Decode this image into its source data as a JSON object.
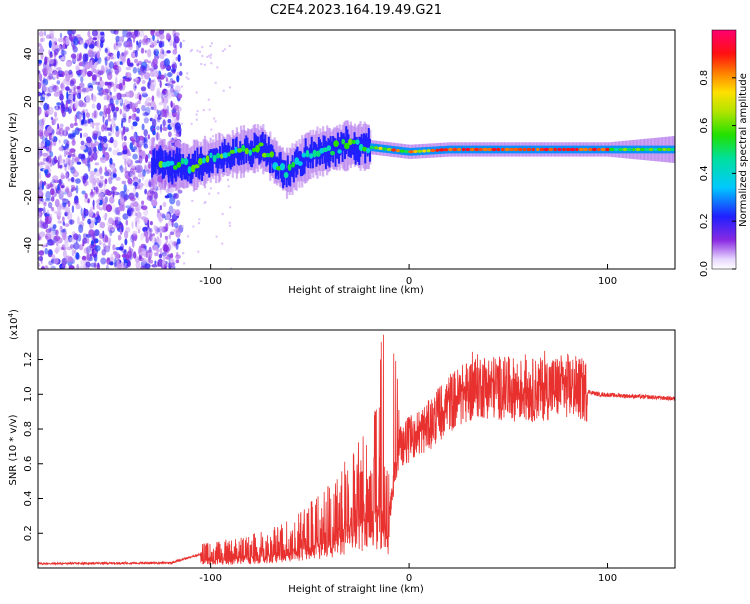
{
  "title": "C2E4.2023.164.19.49.G21",
  "chart_data": [
    {
      "type": "heatmap",
      "xlabel": "Height of straight line (km)",
      "ylabel": "Frequency (Hz)",
      "xlim": [
        -187,
        134
      ],
      "ylim": [
        -50,
        50
      ],
      "xticks": [
        -100,
        0,
        100
      ],
      "yticks": [
        -40,
        -20,
        0,
        20,
        40
      ],
      "colorbar": {
        "label": "Normalized spectral amplitude",
        "range": [
          0.0,
          1.0
        ],
        "ticks": [
          0.0,
          0.2,
          0.4,
          0.6,
          0.8
        ]
      },
      "grid": false,
      "noise_region_x": [
        -187,
        -115
      ],
      "signal_band": [
        {
          "x": -130,
          "f": -6
        },
        {
          "x": -110,
          "f": -7
        },
        {
          "x": -95,
          "f": -3
        },
        {
          "x": -75,
          "f": 1
        },
        {
          "x": -62,
          "f": -10
        },
        {
          "x": -50,
          "f": -2
        },
        {
          "x": -30,
          "f": 2
        },
        {
          "x": -20,
          "f": 1
        },
        {
          "x": 0,
          "f": -1
        },
        {
          "x": 20,
          "f": 0
        },
        {
          "x": 60,
          "f": 0
        },
        {
          "x": 100,
          "f": 0
        },
        {
          "x": 134,
          "f": 0
        }
      ]
    },
    {
      "type": "line",
      "xlabel": "Height of straight line (km)",
      "ylabel": "SNR (10 * v/v)",
      "yscale_label": "(x10",
      "yscale_exp": "4",
      "xlim": [
        -187,
        134
      ],
      "ylim": [
        0,
        13700
      ],
      "xticks": [
        -100,
        0,
        100
      ],
      "yticks": [
        0.2,
        0.4,
        0.6,
        0.8,
        1.0,
        1.2
      ],
      "color": "#e8302e",
      "grid": false,
      "envelope": [
        {
          "x": -187,
          "y": 250
        },
        {
          "x": -120,
          "y": 300
        },
        {
          "x": -105,
          "y": 800
        },
        {
          "x": -80,
          "y": 1100
        },
        {
          "x": -60,
          "y": 1600
        },
        {
          "x": -40,
          "y": 2800
        },
        {
          "x": -25,
          "y": 4200
        },
        {
          "x": -15,
          "y": 5500
        },
        {
          "x": -10,
          "y": 3000
        },
        {
          "x": -5,
          "y": 7000
        },
        {
          "x": 10,
          "y": 8200
        },
        {
          "x": 20,
          "y": 9500
        },
        {
          "x": 35,
          "y": 10500
        },
        {
          "x": 60,
          "y": 10200
        },
        {
          "x": 80,
          "y": 10500
        },
        {
          "x": 95,
          "y": 10000
        },
        {
          "x": 134,
          "y": 9750
        }
      ]
    }
  ]
}
